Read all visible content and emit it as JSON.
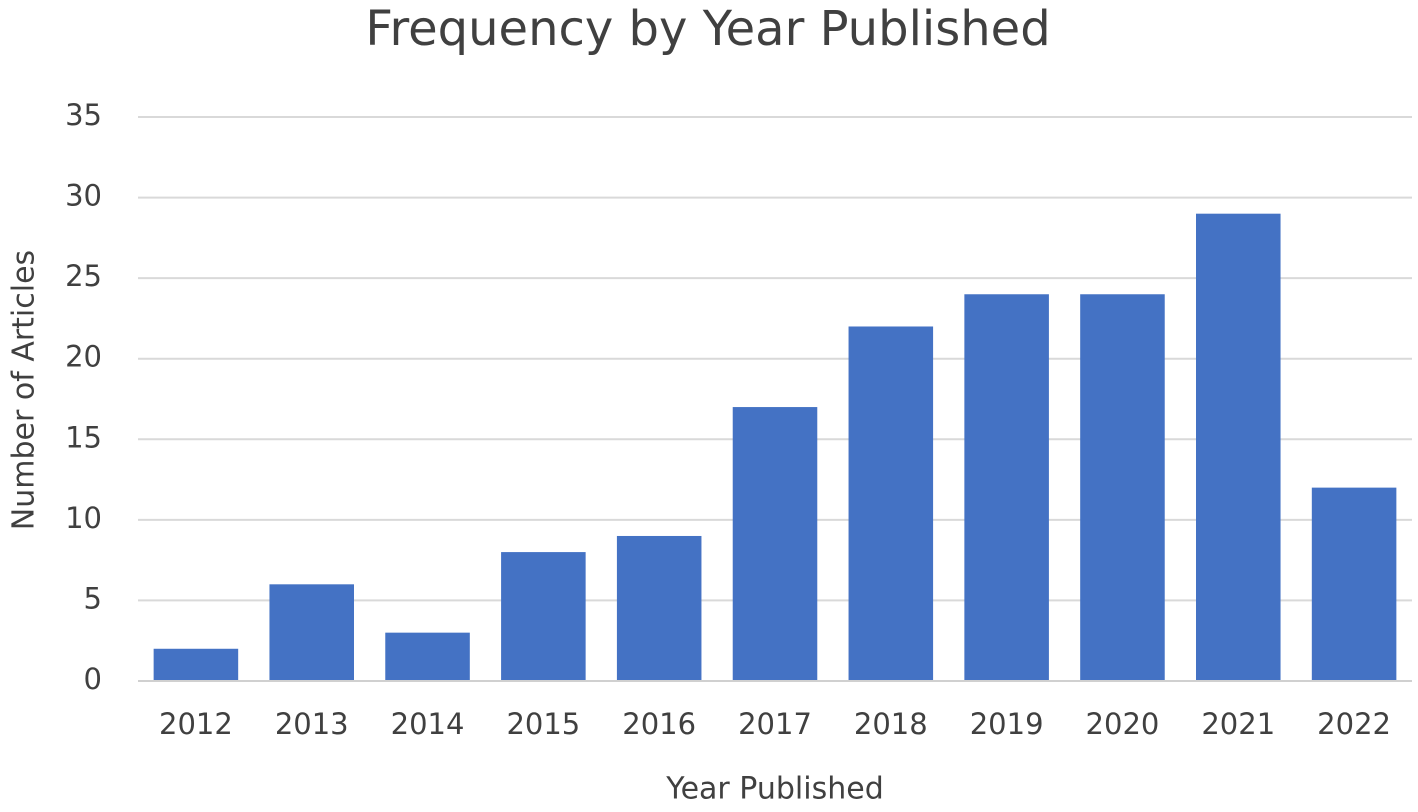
{
  "chart_data": {
    "type": "bar",
    "title": "Frequency by Year Published",
    "xlabel": "Year Published",
    "ylabel": "Number of Articles",
    "categories": [
      "2012",
      "2013",
      "2014",
      "2015",
      "2016",
      "2017",
      "2018",
      "2019",
      "2020",
      "2021",
      "2022"
    ],
    "values": [
      2,
      6,
      3,
      8,
      9,
      17,
      22,
      24,
      24,
      29,
      12
    ],
    "color": "#4472c4",
    "ylim": [
      0,
      35
    ],
    "yticks": [
      0,
      5,
      10,
      15,
      20,
      25,
      30,
      35
    ],
    "grid": true
  }
}
